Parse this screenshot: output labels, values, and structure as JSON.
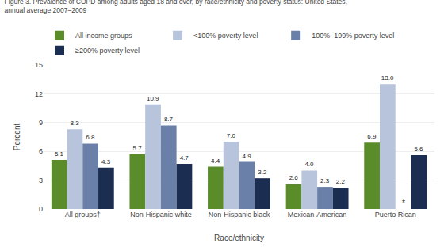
{
  "chart_data": {
    "type": "bar",
    "title": "Figure 3. Prevalence of COPD among adults aged 18 and over, by race/ethnicity and poverty status: United States,",
    "subtitle": "annual average 2007–2009",
    "categories": [
      "All groups†",
      "Non-Hispanic white",
      "Non-Hispanic black",
      "Mexican-American",
      "Puerto Rican"
    ],
    "series": [
      {
        "name": "All income groups",
        "color": "#5a8c2a",
        "values": [
          5.1,
          5.7,
          4.4,
          2.6,
          6.9
        ],
        "value_labels": [
          "5.1",
          "5.7",
          "4.4",
          "2.6",
          "6.9"
        ]
      },
      {
        "name": "<100% poverty level",
        "color": "#b8c4dc",
        "values": [
          8.3,
          10.9,
          7.0,
          4.0,
          13.0
        ],
        "value_labels": [
          "8.3",
          "10.9",
          "7.0",
          "4.0",
          "13.0"
        ]
      },
      {
        "name": "100%–199% poverty level",
        "color": "#6b80a8",
        "values": [
          6.8,
          8.7,
          4.9,
          2.3,
          null
        ],
        "value_labels": [
          "6.8",
          "8.7",
          "4.9",
          "2.3",
          null
        ]
      },
      {
        "name": "≥200% poverty level",
        "color": "#1c2d52",
        "values": [
          4.3,
          4.7,
          3.2,
          2.2,
          5.6
        ],
        "value_labels": [
          "4.3",
          "4.7",
          "3.2",
          "2.2",
          "5.6"
        ]
      }
    ],
    "annotations": [
      {
        "text": "*",
        "category": "Puerto Rican",
        "series": "100%–199% poverty level"
      }
    ],
    "xlabel": "Race/ethnicity",
    "ylabel": "Percent",
    "ylim": [
      0,
      15
    ],
    "yticks": [
      0,
      3,
      6,
      9,
      12,
      15
    ],
    "grid": true,
    "legend": "upper left",
    "data_labels": true
  }
}
